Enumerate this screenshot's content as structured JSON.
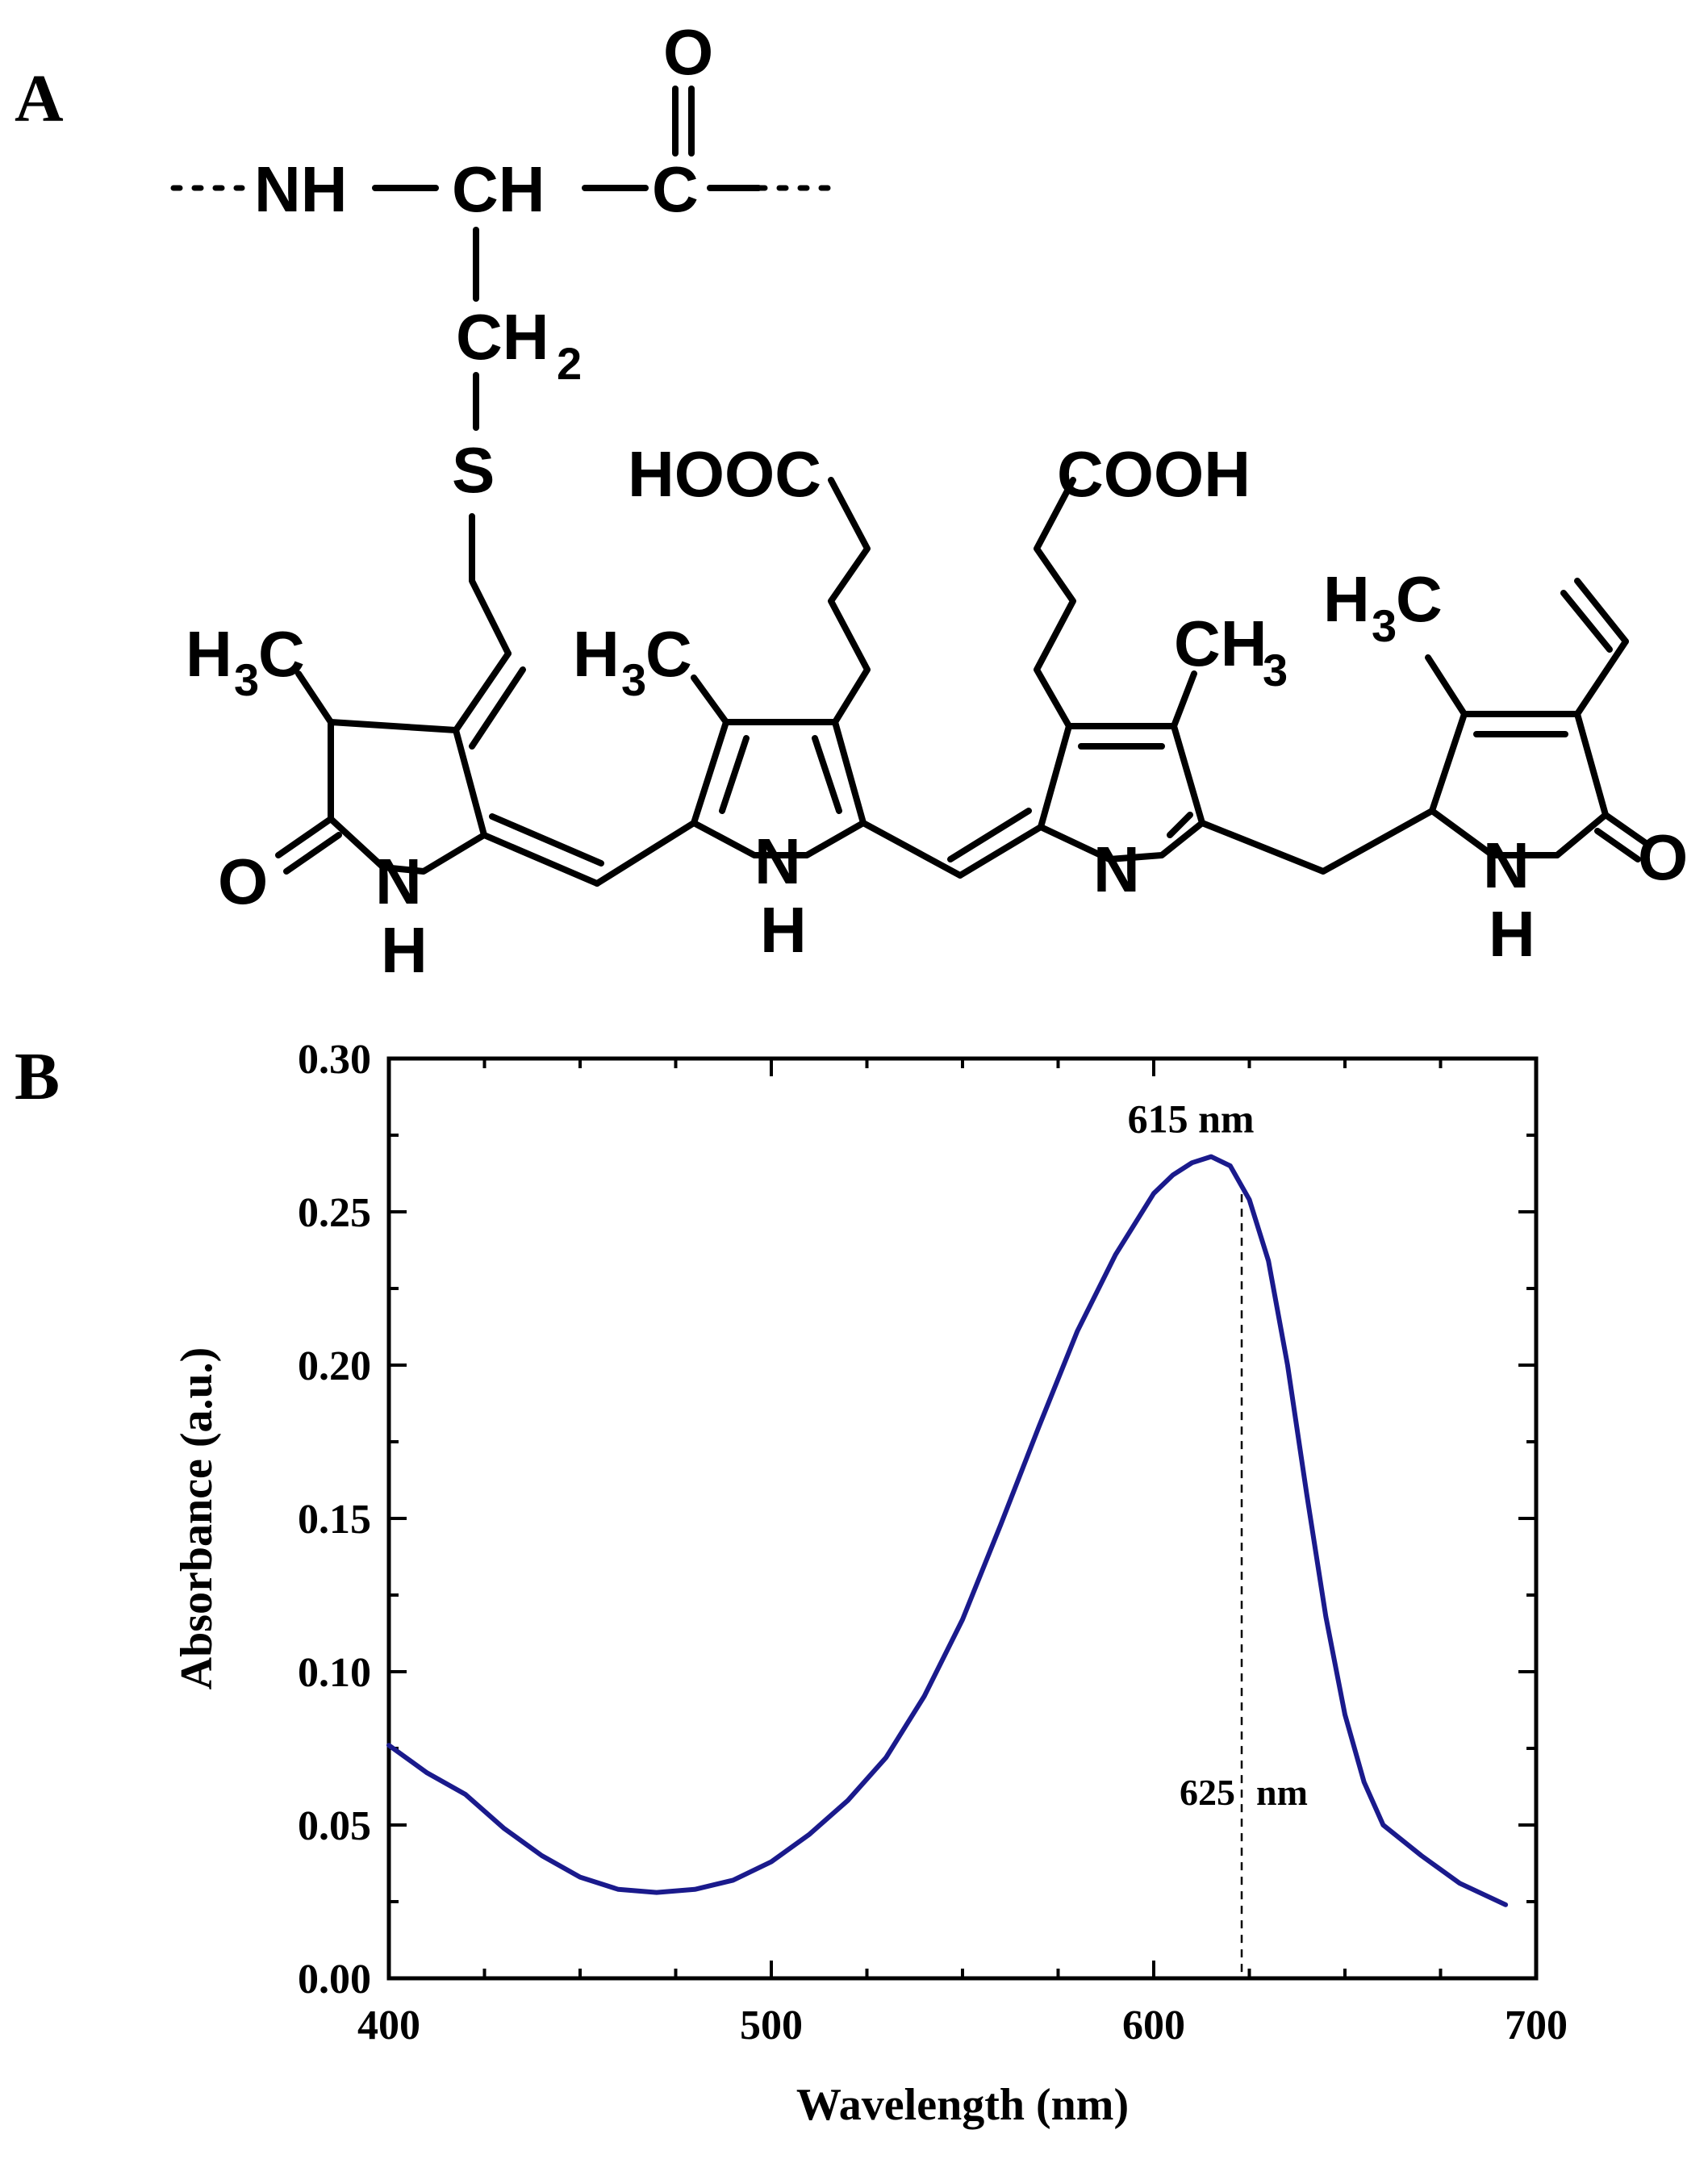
{
  "panels": {
    "a_label": "A",
    "b_label": "B"
  },
  "structure": {
    "labels": {
      "nh_backbone": "NH",
      "ch_backbone": "CH",
      "c_carbonyl": "C",
      "o_carbonyl": "O",
      "ch2": "CH",
      "ch2_sub": "2",
      "s": "S",
      "hooc": "HOOC",
      "cooh": "COOH",
      "h3c_1": "H",
      "h3c_1_sub": "3",
      "h3c_1_c": "C",
      "h3c_2": "H",
      "h3c_2_sub": "3",
      "h3c_2_c": "C",
      "ch3_3": "CH",
      "ch3_3_sub": "3",
      "h3c_4": "H",
      "h3c_4_sub": "3",
      "h3c_4_c": "C",
      "o_left": "O",
      "o_right": "O",
      "nh_a_n": "N",
      "nh_a_h": "H",
      "nh_b_n": "N",
      "nh_b_h": "H",
      "n_c": "N",
      "nh_d_n": "N",
      "nh_d_h": "H"
    }
  },
  "chart_data": {
    "type": "line",
    "xlabel": "Wavelength (nm)",
    "ylabel": "Absorbance (a.u.)",
    "xlim": [
      400,
      700
    ],
    "ylim": [
      0.0,
      0.3
    ],
    "xticks": [
      400,
      500,
      600,
      700
    ],
    "xtick_labels": [
      "400",
      "500",
      "600",
      "700"
    ],
    "yticks": [
      0.0,
      0.05,
      0.1,
      0.15,
      0.2,
      0.25,
      0.3
    ],
    "ytick_labels": [
      "0.00",
      "0.05",
      "0.10",
      "0.15",
      "0.20",
      "0.25",
      "0.30"
    ],
    "grid": false,
    "color": "#1a1a8c",
    "series": [
      {
        "x": [
          400,
          410,
          420,
          430,
          440,
          450,
          460,
          470,
          480,
          490,
          500,
          510,
          520,
          530,
          540,
          550,
          560,
          570,
          580,
          590,
          600,
          605,
          610,
          615,
          620,
          625,
          630,
          635,
          640,
          645,
          650,
          655,
          660,
          670,
          680,
          692
        ],
        "y": [
          0.076,
          0.067,
          0.06,
          0.049,
          0.04,
          0.033,
          0.029,
          0.028,
          0.029,
          0.032,
          0.038,
          0.047,
          0.058,
          0.072,
          0.092,
          0.117,
          0.148,
          0.18,
          0.211,
          0.236,
          0.256,
          0.262,
          0.266,
          0.268,
          0.265,
          0.254,
          0.234,
          0.2,
          0.158,
          0.118,
          0.086,
          0.064,
          0.05,
          0.04,
          0.031,
          0.024
        ]
      }
    ],
    "annotations": {
      "peak_label": "615 nm",
      "ref_value": "625",
      "ref_unit": "nm",
      "ref_x": 623
    }
  }
}
